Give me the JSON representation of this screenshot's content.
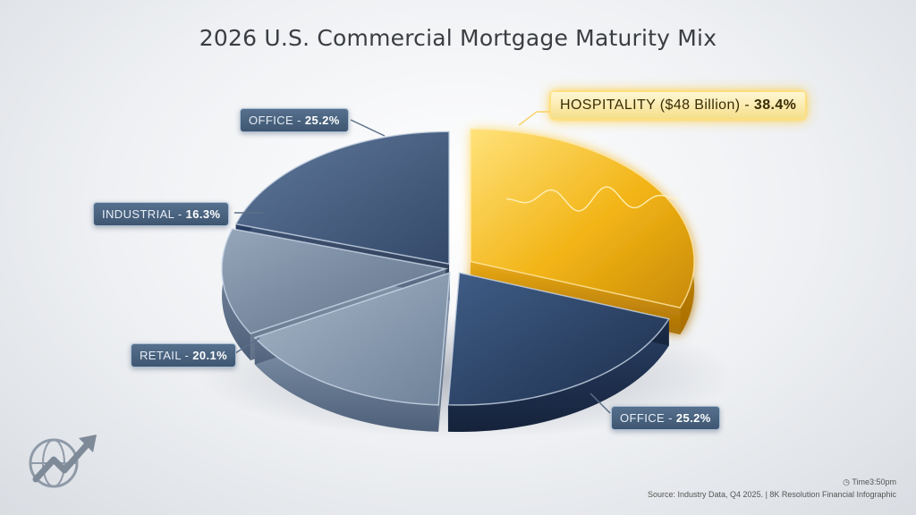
{
  "chart_data": {
    "type": "pie",
    "title": "2026 U.S. Commercial Mortgage Maturity Mix",
    "slices": [
      {
        "name": "HOSPITALITY ($48 Billion)",
        "value": 38.4,
        "value_label": "38.4%",
        "color": "#f2b416"
      },
      {
        "name": "OFFICE",
        "value": 25.2,
        "value_label": "25.2%",
        "color": "#2c4468"
      },
      {
        "name": "RETAIL",
        "value": 20.1,
        "value_label": "20.1%",
        "color": "#7d93ad"
      },
      {
        "name": "INDUSTRIAL",
        "value": 16.3,
        "value_label": "16.3%",
        "color": "#6f849c"
      },
      {
        "name": "OFFICE",
        "value": 25.2,
        "value_label": "25.2%",
        "color": "#3d587c"
      }
    ]
  },
  "labels": {
    "hospitality_name": "HOSPITALITY ($48 Billion)",
    "hospitality_value": "38.4%",
    "office_top_name": "OFFICE",
    "office_top_value": "25.2%",
    "industrial_name": "INDUSTRIAL",
    "industrial_value": "16.3%",
    "retail_name": "RETAIL",
    "retail_value": "20.1%",
    "office_bottom_name": "OFFICE",
    "office_bottom_value": "25.2%"
  },
  "footer": {
    "time": "Time3:50pm",
    "source": "Source: Industry Data, Q4 2025. | 8K Resolution Financial Infographic"
  },
  "colors": {
    "accent_gold": "#f2b416",
    "navy": "#2c4468",
    "slate": "#7d93ad"
  },
  "icons": [
    "clock-icon",
    "globe-growth-logo-icon"
  ]
}
